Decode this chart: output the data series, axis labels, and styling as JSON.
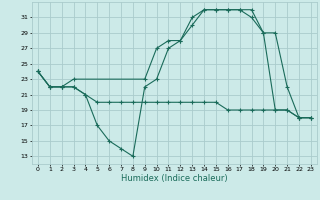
{
  "xlabel": "Humidex (Indice chaleur)",
  "bg_color": "#cceae8",
  "grid_color": "#aacccc",
  "line_color": "#1a6b5a",
  "xlim": [
    -0.5,
    23.5
  ],
  "ylim": [
    12,
    33
  ],
  "yticks": [
    13,
    15,
    17,
    19,
    21,
    23,
    25,
    27,
    29,
    31
  ],
  "xticks": [
    0,
    1,
    2,
    3,
    4,
    5,
    6,
    7,
    8,
    9,
    10,
    11,
    12,
    13,
    14,
    15,
    16,
    17,
    18,
    19,
    20,
    21,
    22,
    23
  ],
  "line1_x": [
    0,
    1,
    2,
    3,
    4,
    5,
    6,
    7,
    8,
    9,
    10,
    11,
    12,
    13,
    14,
    15,
    16,
    17,
    18,
    19,
    20,
    21,
    22,
    23
  ],
  "line1_y": [
    24,
    22,
    22,
    22,
    21,
    17,
    15,
    14,
    13,
    22,
    23,
    27,
    28,
    31,
    32,
    32,
    32,
    32,
    32,
    29,
    19,
    19,
    18,
    18
  ],
  "line2_x": [
    0,
    1,
    2,
    3,
    9,
    10,
    11,
    12,
    13,
    14,
    15,
    16,
    17,
    18,
    19,
    20,
    21,
    22,
    23
  ],
  "line2_y": [
    24,
    22,
    22,
    23,
    23,
    27,
    28,
    28,
    30,
    32,
    32,
    32,
    32,
    31,
    29,
    29,
    22,
    18,
    18
  ],
  "line3_x": [
    0,
    1,
    2,
    3,
    4,
    5,
    6,
    7,
    8,
    9,
    10,
    11,
    12,
    13,
    14,
    15,
    16,
    17,
    18,
    19,
    20,
    21,
    22,
    23
  ],
  "line3_y": [
    24,
    22,
    22,
    22,
    21,
    20,
    20,
    20,
    20,
    20,
    20,
    20,
    20,
    20,
    20,
    20,
    19,
    19,
    19,
    19,
    19,
    19,
    18,
    18
  ]
}
